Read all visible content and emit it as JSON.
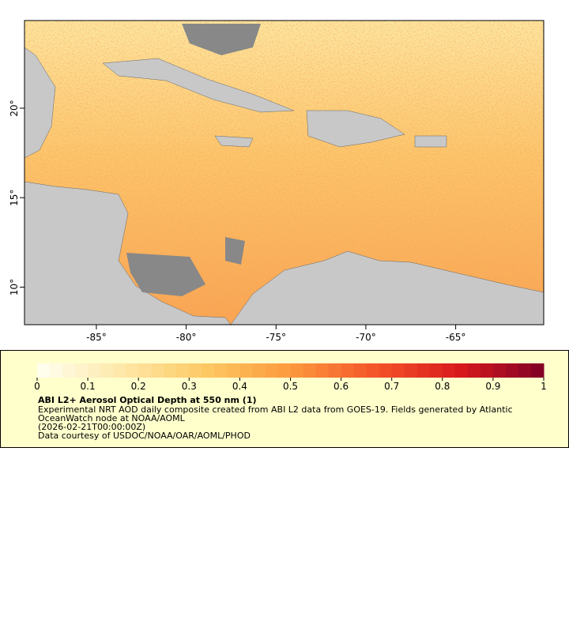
{
  "map": {
    "xlim": [
      -89,
      -60.1
    ],
    "ylim": [
      7.9,
      24.9
    ],
    "xticks": [
      {
        "value": -85,
        "label": "-85°"
      },
      {
        "value": -80,
        "label": "-80°"
      },
      {
        "value": -75,
        "label": "-75°"
      },
      {
        "value": -70,
        "label": "-70°"
      },
      {
        "value": -65,
        "label": "-65°"
      }
    ],
    "yticks": [
      {
        "value": 10,
        "label": "10°"
      },
      {
        "value": 15,
        "label": "15°"
      },
      {
        "value": 20,
        "label": "20°"
      }
    ]
  },
  "colorbar": {
    "lim": [
      0,
      1
    ],
    "ticks": [
      0,
      0.1,
      0.2,
      0.3,
      0.4,
      0.5,
      0.6,
      0.7,
      0.8,
      0.9,
      1
    ],
    "colors": [
      "#fffff2",
      "#fee8a8",
      "#fdc863",
      "#fc9a3c",
      "#f4552a",
      "#d91a1c",
      "#7f0026"
    ]
  },
  "legend": {
    "title": "ABI L2+ Aerosol Optical Depth at 550 nm (1)",
    "lines": [
      "Experimental NRT AOD daily composite created from ABI L2 data from GOES-19. Fields generated by Atlantic",
      "OceanWatch node at NOAA/AOML",
      "(2026-02-21T00:00:00Z)",
      "Data courtesy of USDOC/NOAA/OAR/AOML/PHOD"
    ]
  }
}
